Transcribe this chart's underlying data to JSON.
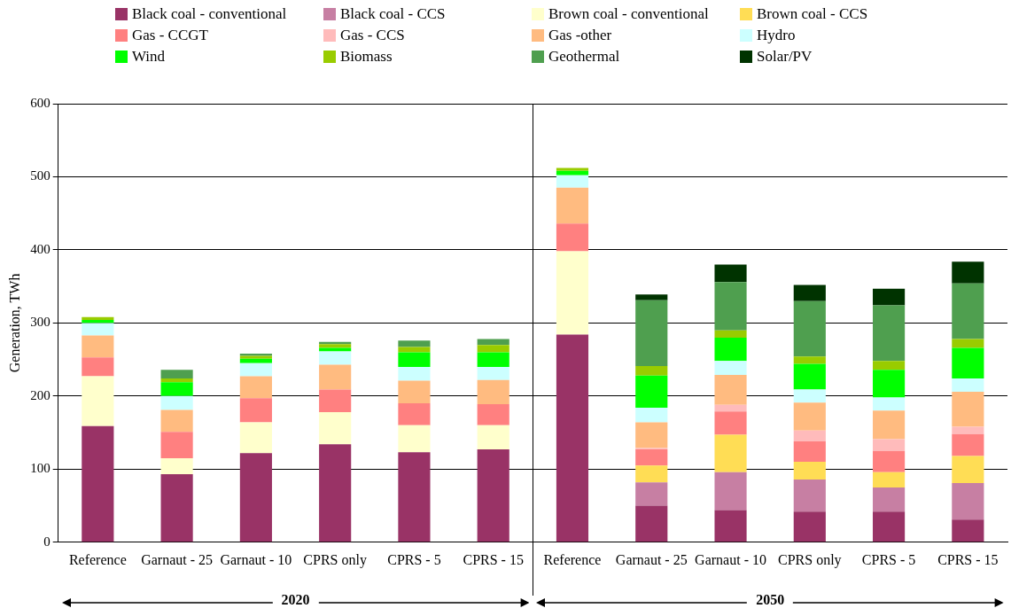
{
  "chart_data": {
    "type": "bar",
    "stacked": true,
    "ylabel": "Generation, TWh",
    "ylim": [
      0,
      600
    ],
    "yticks": [
      0,
      100,
      200,
      300,
      400,
      500,
      600
    ],
    "grid": "y",
    "legend": "top",
    "categories": [
      "Reference",
      "Garnaut - 25",
      "Garnaut - 10",
      "CPRS only",
      "CPRS - 5",
      "CPRS - 15",
      "Reference",
      "Garnaut - 25",
      "Garnaut - 10",
      "CPRS only",
      "CPRS - 5",
      "CPRS - 15"
    ],
    "annotations": [
      "2020",
      "2050"
    ],
    "series": [
      {
        "name": "Black coal - conventional",
        "color": "#993366",
        "values": [
          159,
          93,
          122,
          134,
          123,
          127,
          284,
          50,
          44,
          42,
          42,
          31
        ]
      },
      {
        "name": "Black coal - CCS",
        "color": "#c77fa3",
        "values": [
          0,
          0,
          0,
          0,
          0,
          0,
          0,
          32,
          52,
          44,
          33,
          50
        ]
      },
      {
        "name": "Brown coal - conventional",
        "color": "#ffffcc",
        "values": [
          68,
          22,
          42,
          44,
          37,
          33,
          114,
          0,
          0,
          0,
          0,
          0
        ]
      },
      {
        "name": "Brown coal - CCS",
        "color": "#ffdd55",
        "values": [
          0,
          0,
          0,
          0,
          0,
          0,
          0,
          23,
          51,
          24,
          21,
          37
        ]
      },
      {
        "name": "Gas - CCGT",
        "color": "#ff8080",
        "values": [
          26,
          36,
          33,
          31,
          30,
          29,
          38,
          22,
          32,
          28,
          29,
          30
        ]
      },
      {
        "name": "Gas - CCS",
        "color": "#ffbbbb",
        "values": [
          0,
          0,
          0,
          0,
          0,
          0,
          0,
          2,
          9,
          15,
          16,
          10
        ]
      },
      {
        "name": "Gas -other",
        "color": "#ffbb80",
        "values": [
          30,
          30,
          30,
          34,
          31,
          33,
          49,
          35,
          41,
          38,
          39,
          48
        ]
      },
      {
        "name": "Hydro",
        "color": "#ccffff",
        "values": [
          17,
          19,
          18,
          18,
          19,
          18,
          17,
          20,
          19,
          18,
          18,
          18
        ]
      },
      {
        "name": "Wind",
        "color": "#00ff00",
        "values": [
          4,
          19,
          6,
          5,
          20,
          20,
          6,
          44,
          32,
          35,
          38,
          42
        ]
      },
      {
        "name": "Biomass",
        "color": "#99cc00",
        "values": [
          4,
          5,
          4,
          5,
          7,
          10,
          4,
          13,
          10,
          10,
          12,
          12
        ]
      },
      {
        "name": "Geothermal",
        "color": "#4f9f4f",
        "values": [
          0,
          12,
          3,
          3,
          9,
          8,
          0,
          90,
          66,
          76,
          76,
          76
        ]
      },
      {
        "name": "Solar/PV",
        "color": "#003300",
        "values": [
          0,
          0,
          0,
          0,
          0,
          0,
          0,
          8,
          24,
          22,
          23,
          30
        ]
      }
    ]
  }
}
